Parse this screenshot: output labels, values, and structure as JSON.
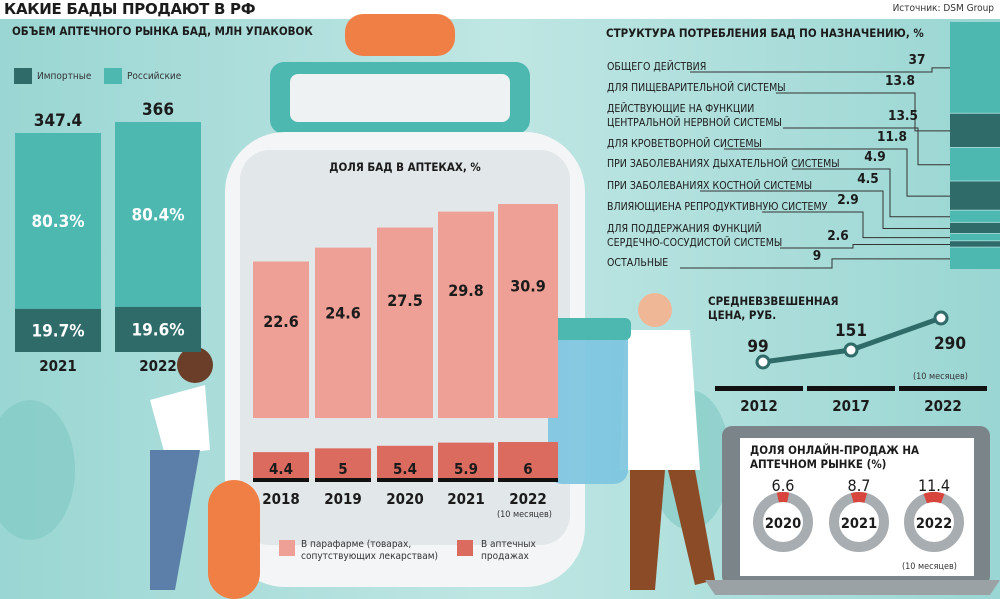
{
  "header": {
    "title": "КАКИЕ БАДЫ ПРОДАЮТ В РФ",
    "source": "Источник: DSM Group"
  },
  "colors": {
    "imported": "#2f6b69",
    "russian": "#4db8b0",
    "parapharm": "#eea096",
    "pharmacy": "#dc6b5f",
    "online": "#d8453c",
    "ring": "#a7adb0",
    "cap": "#f07f45"
  },
  "chart_data": [
    {
      "type": "bar",
      "title": "ОБЪЕМ АПТЕЧНОГО РЫНКА БАД, МЛН УПАКОВОК",
      "categories": [
        "2021",
        "2022"
      ],
      "totals": [
        "347.4",
        "366"
      ],
      "series": [
        {
          "name": "Импортные",
          "values": [
            19.7,
            19.6
          ],
          "labels": [
            "19.7%",
            "19.6%"
          ]
        },
        {
          "name": "Российские",
          "values": [
            80.3,
            80.4
          ],
          "labels": [
            "80.3%",
            "80.4%"
          ]
        }
      ]
    },
    {
      "type": "bar",
      "title": "ДОЛЯ БАД В АПТЕКАХ, %",
      "categories": [
        "2018",
        "2019",
        "2020",
        "2021",
        "2022"
      ],
      "note": "(10 месяцев)",
      "series": [
        {
          "name": "В парафарме (товарах, сопутствующих лекарствам)",
          "values": [
            22.6,
            24.6,
            27.5,
            29.8,
            30.9
          ]
        },
        {
          "name": "В аптечных продажах",
          "values": [
            4.4,
            5,
            5.4,
            5.9,
            6
          ]
        }
      ]
    },
    {
      "type": "bar",
      "title": "СТРУКТУРА ПОТРЕБЛЕНИЯ БАД ПО НАЗНАЧЕНИЮ, %",
      "categories": [
        "ОБЩЕГО ДЕЙСТВИЯ",
        "ДЛЯ ПИЩЕВАРИТЕЛЬНОЙ СИСТЕМЫ",
        "ДЕЙСТВУЮЩИЕ НА ФУНКЦИИ\nЦЕНТРАЛЬНОЙ НЕРВНОЙ СИСТЕМЫ",
        "ДЛЯ КРОВЕТВОРНОЙ СИСТЕМЫ",
        "ПРИ ЗАБОЛЕВАНИЯХ ДЫХАТЕЛЬНОЙ СИСТЕМЫ",
        "ПРИ ЗАБОЛЕВАНИЯХ КОСТНОЙ СИСТЕМЫ",
        "ВЛИЯЮЩИЕНА РЕПРОДУКТИВНУЮ СИСТЕМУ",
        "ДЛЯ ПОДДЕРЖАНИЯ ФУНКЦИЙ\nСЕРДЕЧНО-СОСУДИСТОЙ СИСТЕМЫ",
        "ОСТАЛЬНЫЕ"
      ],
      "values": [
        37,
        13.8,
        13.5,
        11.8,
        4.9,
        4.5,
        2.9,
        2.6,
        9
      ],
      "labels": [
        "37",
        "13.8",
        "13.5",
        "11.8",
        "4.9",
        "4.5",
        "2.9",
        "2.6",
        "9"
      ]
    },
    {
      "type": "line",
      "title": "СРЕДНЕВЗВЕШЕННАЯ ЦЕНА, РУБ.",
      "x": [
        "2012",
        "2017",
        "2022"
      ],
      "y": [
        99,
        151,
        290
      ],
      "labels": [
        "99",
        "151",
        "290"
      ],
      "note": "(10 месяцев)"
    },
    {
      "type": "pie",
      "title": "ДОЛЯ ОНЛАЙН-ПРОДАЖ НА АПТЕЧНОМ РЫНКЕ (%)",
      "categories": [
        "2020",
        "2021",
        "2022"
      ],
      "values": [
        6.6,
        8.7,
        11.4
      ],
      "labels": [
        "6.6",
        "8.7",
        "11.4"
      ],
      "note": "(10 месяцев)"
    }
  ]
}
